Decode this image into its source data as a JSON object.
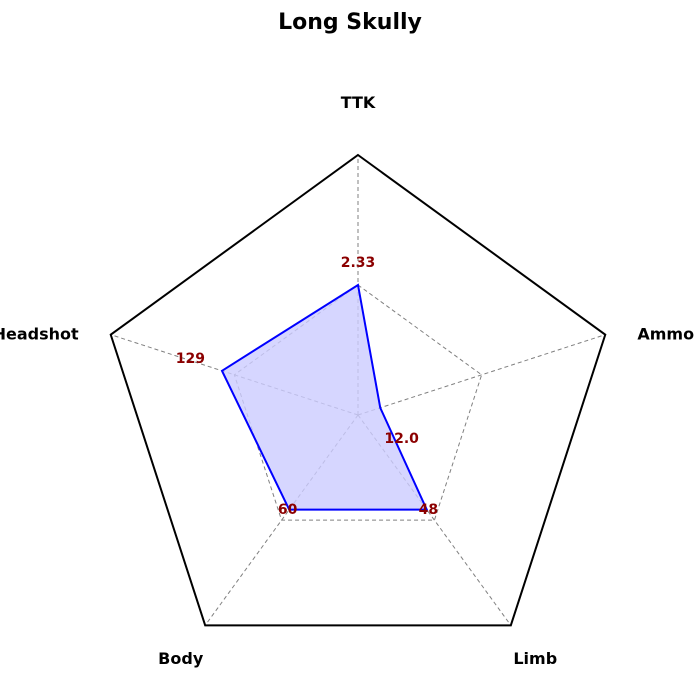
{
  "chart_data": {
    "type": "radar",
    "title": "Long Skully",
    "axes": [
      "TTK",
      "Ammo",
      "Limb",
      "Body",
      "Headshot"
    ],
    "values": [
      2.33,
      12.0,
      48,
      60,
      129
    ],
    "value_labels": [
      "2.33",
      "12.0",
      "48",
      "60",
      "129"
    ],
    "normalized": [
      0.5,
      0.09,
      0.45,
      0.45,
      0.55
    ],
    "grid": true,
    "colors": {
      "outline": "#000000",
      "grid": "#808080",
      "series_line": "#0000ff",
      "series_fill": "#ccccff",
      "value_text": "#8b0000"
    }
  }
}
